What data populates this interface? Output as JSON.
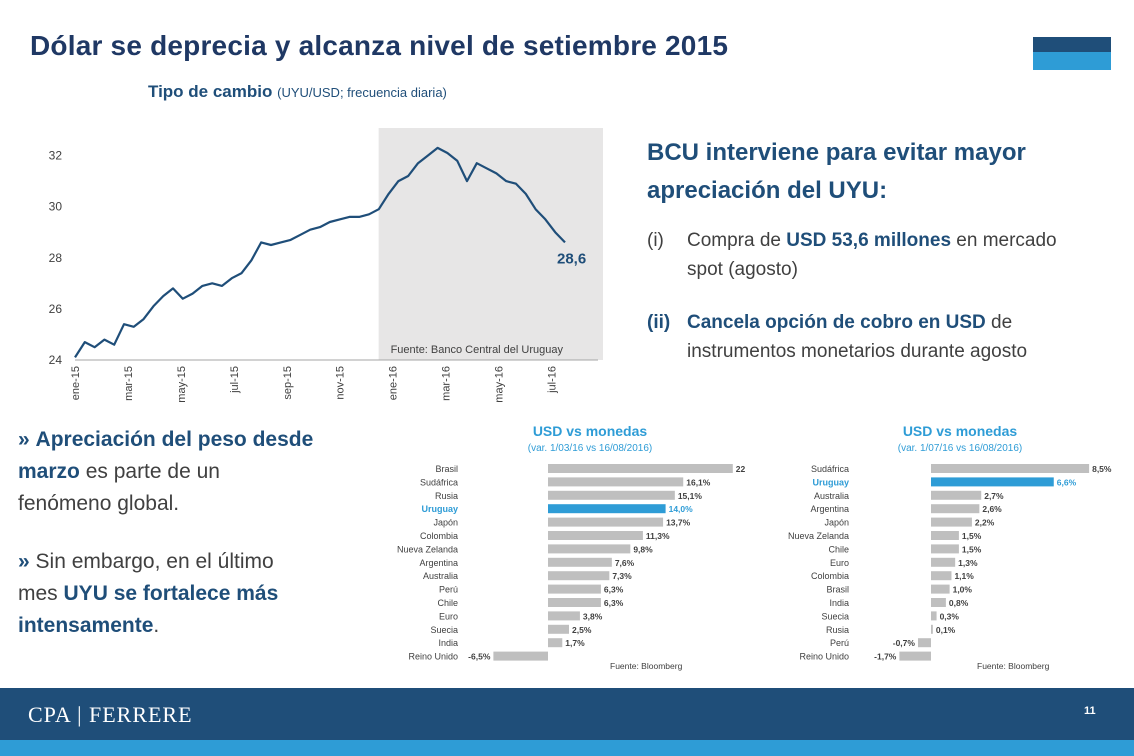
{
  "slide": {
    "title": "Dólar se deprecia y alcanza nivel de setiembre 2015",
    "chart_title_main": "Tipo de cambio",
    "chart_title_sub": "(UYU/USD; frecuencia diaria)",
    "chart_source": "Fuente: Banco Central del Uruguay",
    "chart_last_label": "28,6",
    "bcu_heading": "BCU interviene para evitar mayor apreciación del UYU:",
    "bcu_items": [
      {
        "num": "(i)",
        "pre": "Compra de ",
        "bold": "USD 53,6 millones",
        "post": " en mercado spot (agosto)"
      },
      {
        "num": "(ii)",
        "pre": "",
        "bold": "Cancela opción de cobro en USD",
        "post": " de instrumentos monetarios durante agosto"
      }
    ],
    "note1": {
      "arrow": "»",
      "bold": "Apreciación del peso desde marzo",
      "post": " es parte de un fenómeno global."
    },
    "note2": {
      "arrow": "»",
      "pre": "Sin embargo, en el último mes ",
      "bold": "UYU se fortalece más intensamente",
      "post": "."
    },
    "panel1": {
      "title": "USD vs monedas",
      "subtitle": "(var. 1/03/16 vs 16/08/2016)",
      "source": "Fuente: Bloomberg"
    },
    "panel2": {
      "title": "USD vs monedas",
      "subtitle": "(var. 1/07/16 vs 16/08/2016)",
      "source": "Fuente: Bloomberg"
    },
    "brand": "CPA | FERRERE",
    "page_number": "11"
  },
  "colors": {
    "navy": "#1f4e79",
    "light_blue": "#2e9cd6",
    "gray_bar": "#bfbfbf",
    "shade": "#e7e6e6"
  },
  "chart_data": [
    {
      "type": "line",
      "series": [
        {
          "values": [
            24.1,
            24.7,
            24.5,
            24.8,
            24.6,
            25.4,
            25.3,
            25.6,
            26.1,
            26.5,
            26.8,
            26.4,
            26.6,
            26.9,
            27.0,
            26.9,
            27.2,
            27.4,
            27.9,
            28.6,
            28.5,
            28.6,
            28.7,
            28.9,
            29.1,
            29.2,
            29.4,
            29.5,
            29.6,
            29.6,
            29.7,
            29.9,
            30.5,
            31.0,
            31.2,
            31.7,
            32.0,
            32.3,
            32.1,
            31.8,
            31.0,
            31.7,
            31.5,
            31.3,
            31.0,
            30.9,
            30.5,
            29.9,
            29.5,
            29.0,
            28.6
          ]
        }
      ],
      "x_ticks": [
        "ene-15",
        "mar-15",
        "may-15",
        "jul-15",
        "sep-15",
        "nov-15",
        "ene-16",
        "mar-16",
        "may-16",
        "jul-16"
      ],
      "y_ticks": [
        24,
        26,
        28,
        30,
        32
      ],
      "ylim": [
        24,
        33
      ],
      "shaded_from": "ene-16",
      "last_value_label": "28,6"
    },
    {
      "type": "bar",
      "orientation": "horizontal",
      "categories": [
        "Brasil",
        "Sudáfrica",
        "Rusia",
        "Uruguay",
        "Japón",
        "Colombia",
        "Nueva Zelanda",
        "Argentina",
        "Australia",
        "Perú",
        "Chile",
        "Euro",
        "Suecia",
        "India",
        "Reino Unido"
      ],
      "values": [
        22,
        16.1,
        15.1,
        14.0,
        13.7,
        11.3,
        9.8,
        7.6,
        7.3,
        6.3,
        6.3,
        3.8,
        2.5,
        1.7,
        -6.5
      ],
      "labels": [
        "22",
        "16,1%",
        "15,1%",
        "14,0%",
        "13,7%",
        "11,3%",
        "9,8%",
        "7,6%",
        "7,3%",
        "6,3%",
        "6,3%",
        "3,8%",
        "2,5%",
        "1,7%",
        "-6,5%"
      ],
      "highlight": "Uruguay"
    },
    {
      "type": "bar",
      "orientation": "horizontal",
      "categories": [
        "Sudáfrica",
        "Uruguay",
        "Australia",
        "Argentina",
        "Japón",
        "Nueva Zelanda",
        "Chile",
        "Euro",
        "Colombia",
        "Brasil",
        "India",
        "Suecia",
        "Rusia",
        "Perú",
        "Reino Unido"
      ],
      "values": [
        8.5,
        6.6,
        2.7,
        2.6,
        2.2,
        1.5,
        1.5,
        1.3,
        1.1,
        1.0,
        0.8,
        0.3,
        0.1,
        -0.7,
        -1.7
      ],
      "labels": [
        "8,5%",
        "6,6%",
        "2,7%",
        "2,6%",
        "2,2%",
        "1,5%",
        "1,5%",
        "1,3%",
        "1,1%",
        "1,0%",
        "0,8%",
        "0,3%",
        "0,1%",
        "-0,7%",
        "-1,7%"
      ],
      "highlight": "Uruguay"
    }
  ]
}
